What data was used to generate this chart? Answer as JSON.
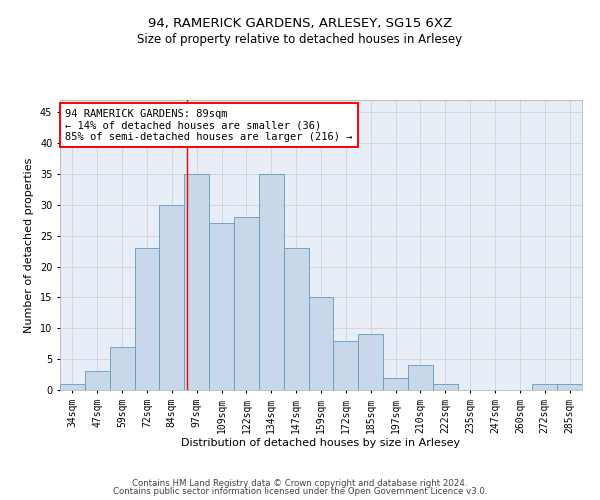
{
  "title1": "94, RAMERICK GARDENS, ARLESEY, SG15 6XZ",
  "title2": "Size of property relative to detached houses in Arlesey",
  "xlabel": "Distribution of detached houses by size in Arlesey",
  "ylabel": "Number of detached properties",
  "footer1": "Contains HM Land Registry data © Crown copyright and database right 2024.",
  "footer2": "Contains public sector information licensed under the Open Government Licence v3.0.",
  "annotation_line1": "94 RAMERICK GARDENS: 89sqm",
  "annotation_line2": "← 14% of detached houses are smaller (36)",
  "annotation_line3": "85% of semi-detached houses are larger (216) →",
  "bin_labels": [
    "34sqm",
    "47sqm",
    "59sqm",
    "72sqm",
    "84sqm",
    "97sqm",
    "109sqm",
    "122sqm",
    "134sqm",
    "147sqm",
    "159sqm",
    "172sqm",
    "185sqm",
    "197sqm",
    "210sqm",
    "222sqm",
    "235sqm",
    "247sqm",
    "260sqm",
    "272sqm",
    "285sqm"
  ],
  "values": [
    1,
    3,
    7,
    23,
    30,
    35,
    27,
    28,
    35,
    23,
    15,
    8,
    9,
    2,
    4,
    1,
    0,
    0,
    0,
    1,
    1
  ],
  "bar_color": "#c8d8ea",
  "bar_edge_color": "#6699bb",
  "red_line_x": 4.62,
  "ylim": [
    0,
    47
  ],
  "yticks": [
    0,
    5,
    10,
    15,
    20,
    25,
    30,
    35,
    40,
    45
  ],
  "grid_color": "#cccccc",
  "background_color": "#e8eef8",
  "annotation_box_color": "white",
  "annotation_box_edge": "red",
  "title_fontsize": 9.5,
  "subtitle_fontsize": 8.5,
  "xlabel_fontsize": 8,
  "ylabel_fontsize": 8,
  "tick_fontsize": 7,
  "annotation_fontsize": 7.5,
  "footer_fontsize": 6.2
}
